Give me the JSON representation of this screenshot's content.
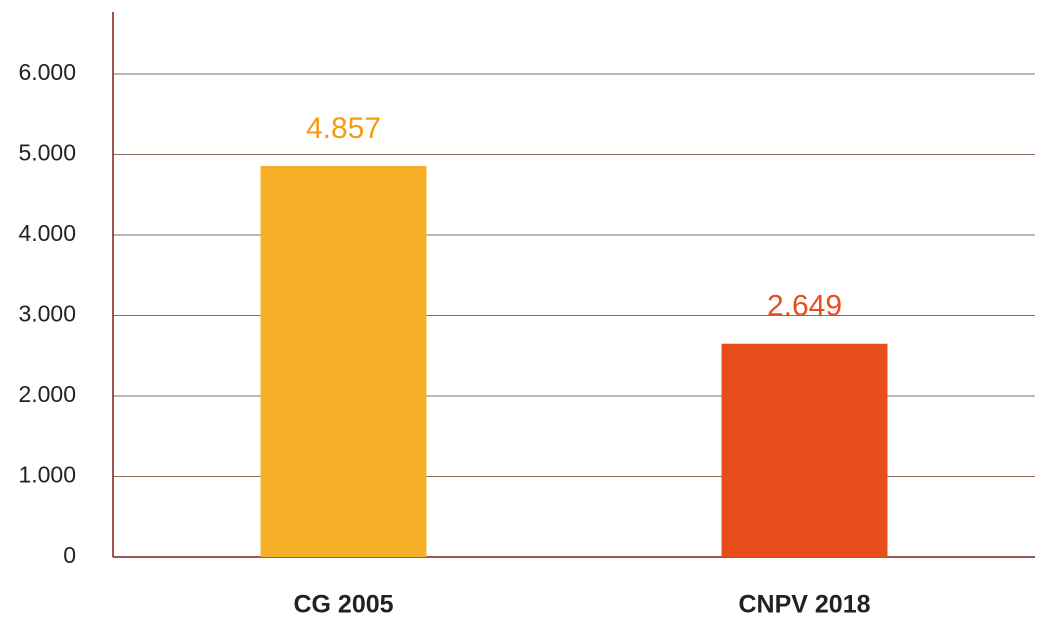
{
  "chart_data": {
    "type": "bar",
    "categories": [
      "CG 2005",
      "CNPV 2018"
    ],
    "values": [
      4857,
      2649
    ],
    "value_labels": [
      "4.857",
      "2.649"
    ],
    "colors": [
      "#f5b027",
      "#e84e1c"
    ],
    "label_colors": [
      "#f39c12",
      "#e84e1c"
    ],
    "ylim": [
      0,
      6770
    ],
    "yticks": [
      0,
      {
        "value": 1000,
        "label": "1.000"
      },
      {
        "value": 2000,
        "label": "2.000"
      },
      {
        "value": 3000,
        "label": "3.000"
      },
      {
        "value": 4000,
        "label": "4.000"
      },
      {
        "value": 5000,
        "label": "5.000"
      },
      {
        "value": 6000,
        "label": "6.000"
      }
    ],
    "grid": true
  }
}
